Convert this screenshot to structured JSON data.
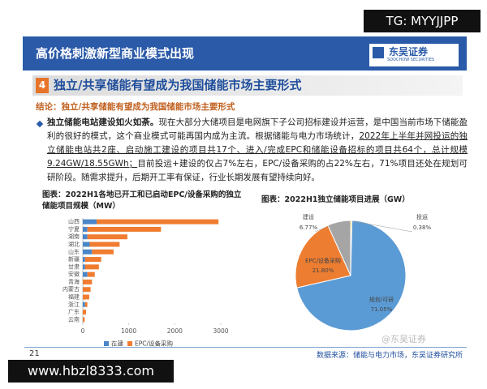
{
  "watermark_top": "TG: MYYJJPP",
  "header": {
    "title": "高价格刺激新型商业模式出现",
    "logo_cn": "东吴证券",
    "logo_en": "SOOCHOW SECURITIES"
  },
  "section": {
    "number": "4",
    "title": "独立/共享储能有望成为我国储能市场主要形式"
  },
  "conclusion": "结论：独立/共享储能有望成为我国储能市场主要形式",
  "paragraph": {
    "lead": "独立储能电站建设如火如荼。",
    "text1": "现在大部分大储项目是电网旗下子公司招标建设并运营，是中国当前市场下储能盈利的很好的模式，这个商业模式可能再国内成为主流。根据储能与电力市场统计，",
    "underlined": "2022年上半年并网投运的独立储能电站共2座、启动施工建设的项目共17个、进入/完成EPC和储能设备招标的项目共64个，总计规模9.24GW/18.55GWh；",
    "text2": "目前投运+建设的仅占7%左右，EPC/设备采购的占22%左右，71%项目还处在规划可研阶段。随需求提升，后期开工率有保证，行业长期发展有望持续向好。"
  },
  "chart_data": [
    {
      "type": "bar",
      "horizontal": true,
      "stacked": true,
      "title": "图表：2022H1各地已开工和已启动EPC/设备采购的独立储能项目规模（MW）",
      "categories": [
        "山西",
        "宁夏",
        "湖南",
        "湖北",
        "山东",
        "新疆",
        "甘肃",
        "安徽",
        "青海",
        "内蒙古",
        "福建",
        "浙江",
        "广东",
        "云南"
      ],
      "series": [
        {
          "name": "在建",
          "color": "#4a86c8",
          "values": [
            300,
            100,
            100,
            150,
            200,
            50,
            50,
            100,
            0,
            0,
            0,
            50,
            0,
            0
          ]
        },
        {
          "name": "EPC/设备采购",
          "color": "#f07c30",
          "values": [
            2650,
            1600,
            870,
            650,
            470,
            350,
            300,
            160,
            200,
            170,
            140,
            50,
            70,
            40
          ]
        }
      ],
      "xlim": [
        0,
        3000
      ],
      "xticks": [
        0,
        1000,
        2000,
        3000
      ]
    },
    {
      "type": "pie",
      "title": "图表：2022H1独立储能项目进展（GW）",
      "categories": [
        "投运",
        "规划/可研",
        "EPC/设备采购",
        "建设"
      ],
      "values": [
        0.38,
        71.05,
        21.8,
        6.77
      ],
      "value_labels": [
        "0.38%",
        "71.05%",
        "21.80%",
        "6.77%"
      ],
      "colors": [
        "#ffc000",
        "#5b9bd5",
        "#ed7d31",
        "#a5a5a5"
      ]
    }
  ],
  "footer": {
    "page": "21",
    "source": "数据来源：储能与电力市场，东吴证券研究所"
  },
  "watermark_logo": "@东吴证券",
  "watermark_bottom": "www.hbzl8333.com"
}
